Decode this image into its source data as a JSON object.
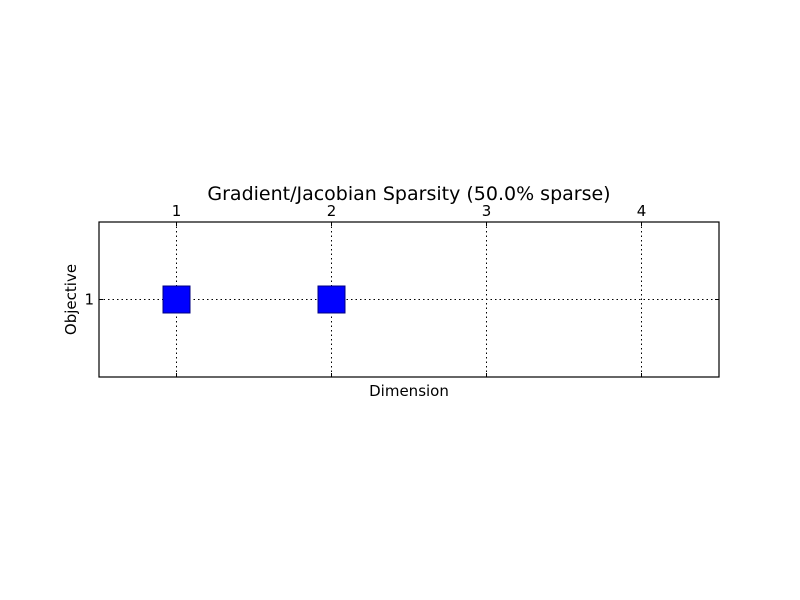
{
  "chart_data": {
    "type": "scatter",
    "title": "Gradient/Jacobian Sparsity (50.0% sparse)",
    "xlabel": "Dimension",
    "ylabel": "Objective",
    "x_ticks": [
      "1",
      "2",
      "3",
      "4"
    ],
    "y_ticks": [
      "1"
    ],
    "xlim": [
      0.5,
      4.5
    ],
    "ylim": [
      0.5,
      1.5
    ],
    "x_axis_position": "top",
    "grid": true,
    "marker": "square",
    "marker_color": "#0000ff",
    "points": [
      {
        "x": 1,
        "y": 1
      },
      {
        "x": 2,
        "y": 1
      }
    ]
  }
}
